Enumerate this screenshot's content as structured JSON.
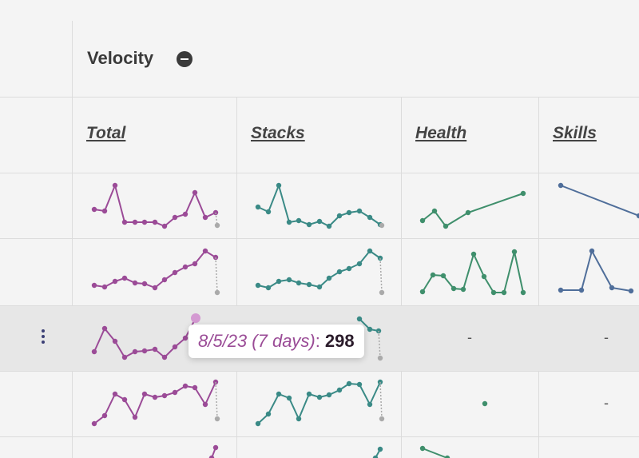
{
  "header": {
    "group_title": "Velocity",
    "collapse_icon": "minus-circle-icon"
  },
  "columns": [
    {
      "key": "total",
      "label": "Total",
      "color": "#9b4b97"
    },
    {
      "key": "stacks",
      "label": "Stacks",
      "color": "#3a8a86"
    },
    {
      "key": "health",
      "label": "Health",
      "color": "#3f8f6c"
    },
    {
      "key": "skills",
      "label": "Skills",
      "color": "#4f6e9a"
    }
  ],
  "rows": [
    {
      "total": [
        30,
        28,
        58,
        18,
        18,
        18,
        17,
        13,
        20,
        23,
        22,
        22,
        18,
        25,
        38,
        27,
        30,
        45,
        41,
        48,
        26,
        25,
        19
      ],
      "stacks": [
        35,
        30,
        62,
        20,
        22,
        18,
        22,
        18,
        25,
        28,
        30,
        25,
        20,
        18,
        12
      ],
      "health": [
        12,
        22,
        8,
        18,
        25,
        30,
        35,
        40
      ],
      "skills": [
        70,
        60,
        50,
        40,
        30,
        20,
        10
      ]
    },
    {
      "total": [],
      "stacks": [],
      "health": [],
      "skills": []
    },
    {
      "total": [],
      "stacks": [],
      "health": "-",
      "skills": "-"
    },
    {
      "total": [],
      "stacks": [],
      "health": [
        50
      ],
      "skills": "-"
    }
  ],
  "row_actions_icon": "kebab-menu-icon",
  "tooltip": {
    "label": "8/5/23 (7 days)",
    "separator": ":",
    "value": "298"
  },
  "dash_text": "-"
}
